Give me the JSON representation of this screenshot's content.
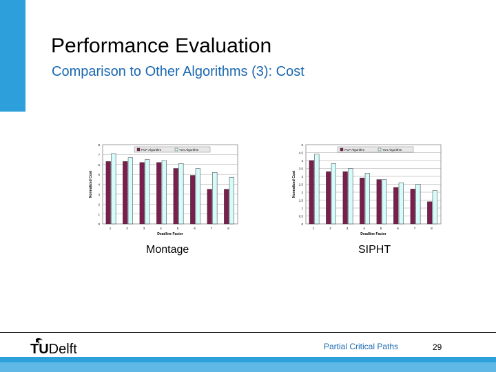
{
  "slide": {
    "title": "Performance Evaluation",
    "subtitle": "Comparison to Other Algorithms (3): Cost",
    "footer_title": "Partial Critical Paths",
    "page_number": "29",
    "logo_tu": "TU",
    "logo_delft": "Delft"
  },
  "colors": {
    "accent": "#2da0dc",
    "pcp": "#7a1e4d",
    "yu": "#d6fbfb"
  },
  "chart_data": [
    {
      "type": "bar",
      "caption": "Montage",
      "categories": [
        "1",
        "2",
        "3",
        "4",
        "5",
        "6",
        "7",
        "8"
      ],
      "series": [
        {
          "name": "PCP Algorithm",
          "values": [
            6.3,
            6.3,
            6.2,
            6.2,
            5.6,
            4.9,
            3.5,
            3.5
          ]
        },
        {
          "name": "Yu's Algorithm",
          "values": [
            7.1,
            6.7,
            6.5,
            6.4,
            6.1,
            5.6,
            5.2,
            4.7
          ]
        }
      ],
      "xlabel": "Deadline Factor",
      "ylabel": "Normalized Cost",
      "ylim": [
        0,
        8
      ],
      "yticks": [
        0,
        1,
        2,
        3,
        4,
        5,
        6,
        7,
        8
      ],
      "ytick_labels": [
        "0",
        "1",
        "2",
        "3",
        "4",
        "5",
        "6",
        "7",
        "8"
      ],
      "grid": true,
      "legend": "top"
    },
    {
      "type": "bar",
      "caption": "SIPHT",
      "categories": [
        "1",
        "2",
        "3",
        "4",
        "5",
        "6",
        "7",
        "8"
      ],
      "series": [
        {
          "name": "PCP Algorithm",
          "values": [
            4.0,
            3.3,
            3.3,
            2.9,
            2.8,
            2.3,
            2.2,
            1.4
          ]
        },
        {
          "name": "Yu's Algorithm",
          "values": [
            4.4,
            3.8,
            3.5,
            3.2,
            2.8,
            2.6,
            2.5,
            2.1
          ]
        }
      ],
      "xlabel": "Deadline Factor",
      "ylabel": "Normalized Cost",
      "ylim": [
        0,
        5
      ],
      "yticks": [
        0,
        0.5,
        1,
        1.5,
        2,
        2.5,
        3,
        3.5,
        4,
        4.5,
        5
      ],
      "ytick_labels": [
        "0",
        "0.5",
        "1",
        "1.5",
        "2",
        "2.5",
        "3",
        "3.5",
        "4",
        "4.5",
        "5"
      ],
      "grid": true,
      "legend": "top"
    }
  ]
}
